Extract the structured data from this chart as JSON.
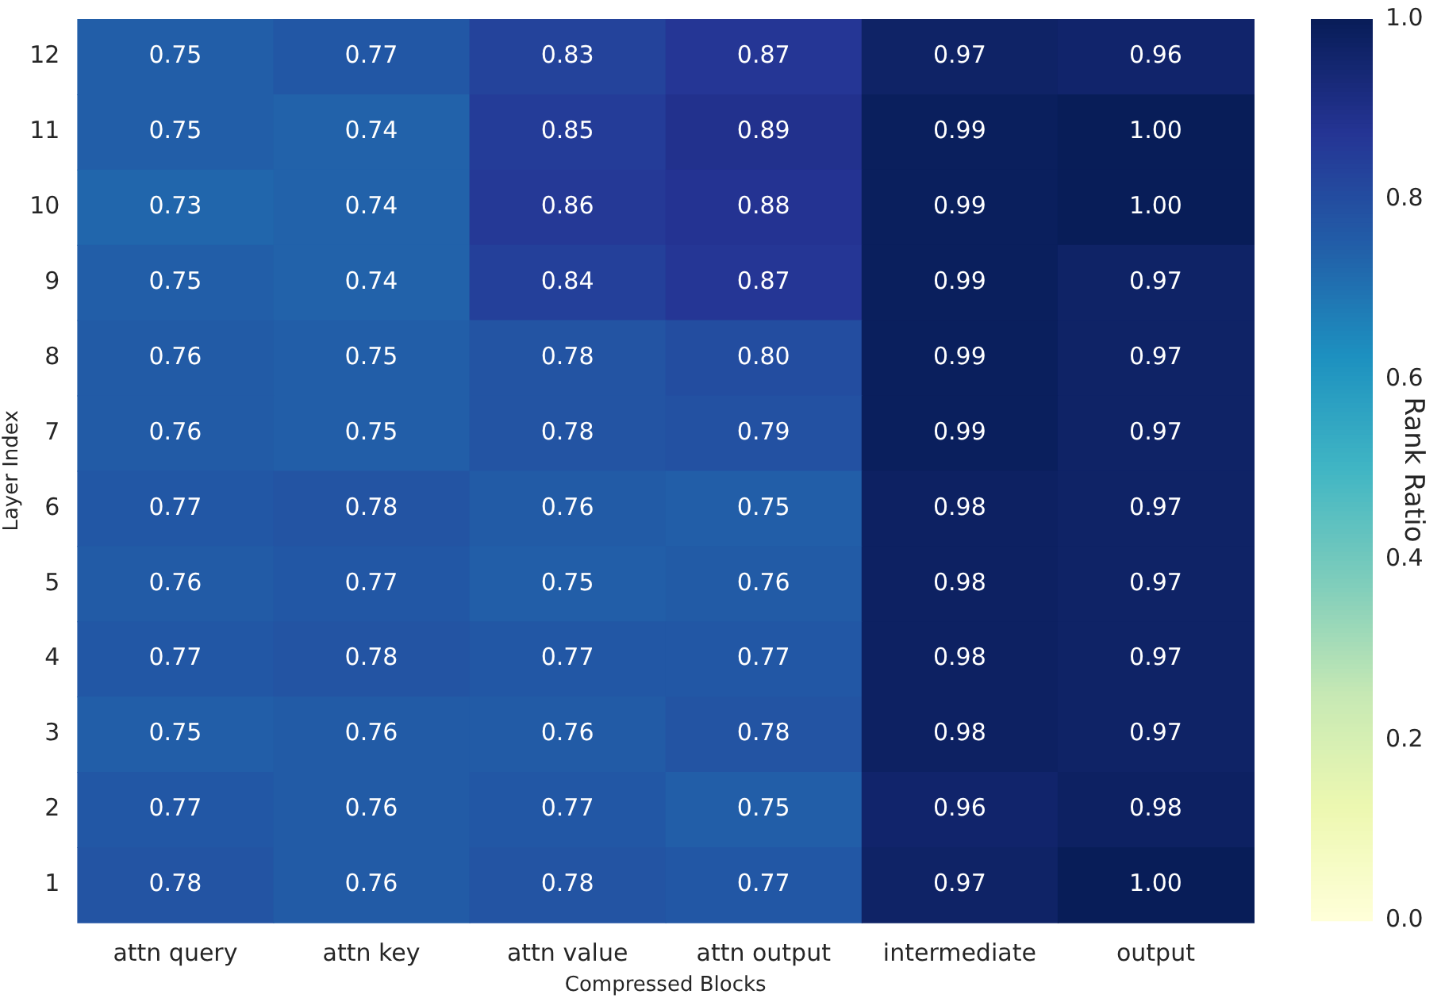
{
  "chart_data": {
    "type": "heatmap",
    "xlabel": "Compressed Blocks",
    "ylabel": "Layer Index",
    "clabel": "Rank Ratio",
    "categories": [
      "attn query",
      "attn key",
      "attn value",
      "attn output",
      "intermediate",
      "output"
    ],
    "y_categories": [
      "12",
      "11",
      "10",
      "9",
      "8",
      "7",
      "6",
      "5",
      "4",
      "3",
      "2",
      "1"
    ],
    "cells": [
      [
        0.75,
        0.77,
        0.83,
        0.87,
        0.97,
        0.96
      ],
      [
        0.75,
        0.74,
        0.85,
        0.89,
        0.99,
        1.0
      ],
      [
        0.73,
        0.74,
        0.86,
        0.88,
        0.99,
        1.0
      ],
      [
        0.75,
        0.74,
        0.84,
        0.87,
        0.99,
        0.97
      ],
      [
        0.76,
        0.75,
        0.78,
        0.8,
        0.99,
        0.97
      ],
      [
        0.76,
        0.75,
        0.78,
        0.79,
        0.99,
        0.97
      ],
      [
        0.77,
        0.78,
        0.76,
        0.75,
        0.98,
        0.97
      ],
      [
        0.76,
        0.77,
        0.75,
        0.76,
        0.98,
        0.97
      ],
      [
        0.77,
        0.78,
        0.77,
        0.77,
        0.98,
        0.97
      ],
      [
        0.75,
        0.76,
        0.76,
        0.78,
        0.98,
        0.97
      ],
      [
        0.77,
        0.76,
        0.77,
        0.75,
        0.96,
        0.98
      ],
      [
        0.78,
        0.76,
        0.78,
        0.77,
        0.97,
        1.0
      ]
    ],
    "cell_labels": [
      [
        "0.75",
        "0.77",
        "0.83",
        "0.87",
        "0.97",
        "0.96"
      ],
      [
        "0.75",
        "0.74",
        "0.85",
        "0.89",
        "0.99",
        "1.00"
      ],
      [
        "0.73",
        "0.74",
        "0.86",
        "0.88",
        "0.99",
        "1.00"
      ],
      [
        "0.75",
        "0.74",
        "0.84",
        "0.87",
        "0.99",
        "0.97"
      ],
      [
        "0.76",
        "0.75",
        "0.78",
        "0.80",
        "0.99",
        "0.97"
      ],
      [
        "0.76",
        "0.75",
        "0.78",
        "0.79",
        "0.99",
        "0.97"
      ],
      [
        "0.77",
        "0.78",
        "0.76",
        "0.75",
        "0.98",
        "0.97"
      ],
      [
        "0.76",
        "0.77",
        "0.75",
        "0.76",
        "0.98",
        "0.97"
      ],
      [
        "0.77",
        "0.78",
        "0.77",
        "0.77",
        "0.98",
        "0.97"
      ],
      [
        "0.75",
        "0.76",
        "0.76",
        "0.78",
        "0.98",
        "0.97"
      ],
      [
        "0.77",
        "0.76",
        "0.77",
        "0.75",
        "0.96",
        "0.98"
      ],
      [
        "0.78",
        "0.76",
        "0.78",
        "0.77",
        "0.97",
        "1.00"
      ]
    ],
    "clim": [
      0,
      1
    ],
    "cticks": [
      {
        "value": 0,
        "label": "0.0"
      },
      {
        "value": 0.2,
        "label": "0.2"
      },
      {
        "value": 0.4,
        "label": "0.4"
      },
      {
        "value": 0.6,
        "label": "0.6"
      },
      {
        "value": 0.8,
        "label": "0.8"
      },
      {
        "value": 1,
        "label": "1.0"
      }
    ]
  }
}
